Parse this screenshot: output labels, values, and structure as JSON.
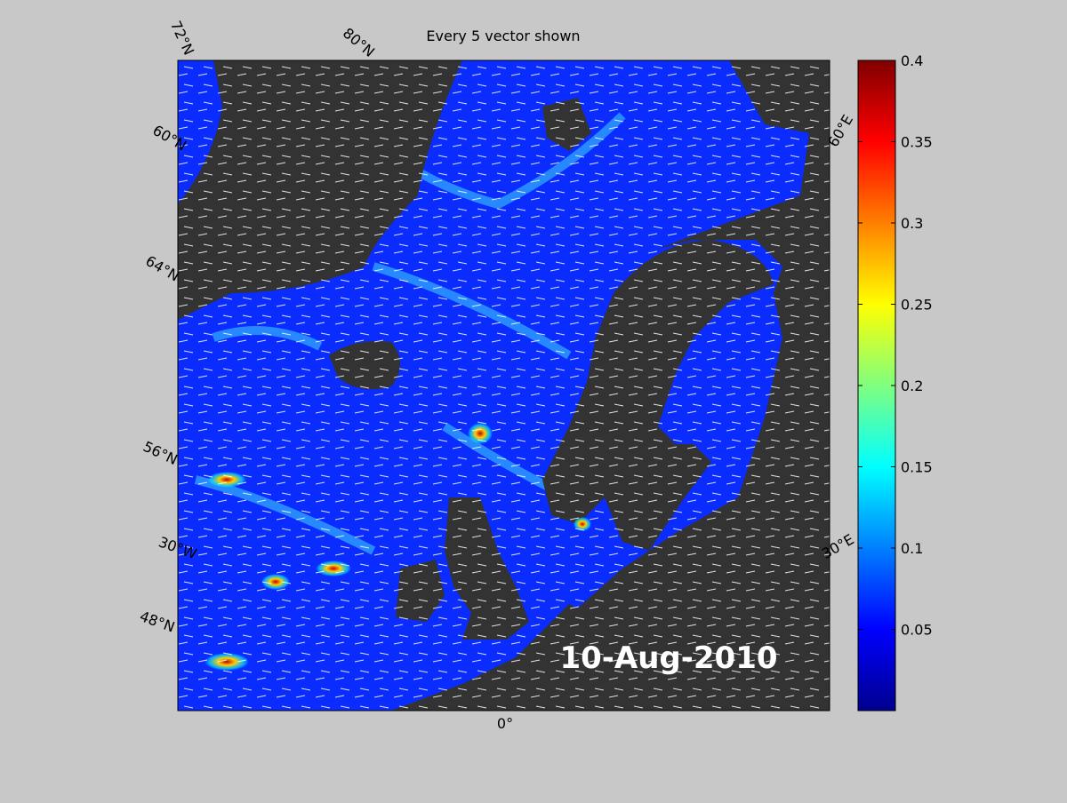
{
  "title": "Every 5 vector shown",
  "date_label": "10-Aug-2010",
  "graticule_labels": [
    "72°N",
    "80°N",
    "60°N",
    "64°N",
    "56°N",
    "30°W",
    "48°N",
    "0°",
    "30°E",
    "60°E"
  ],
  "colorbar": {
    "lim": [
      0,
      0.4
    ],
    "ticks": [
      0.05,
      0.1,
      0.15,
      0.2,
      0.25,
      0.3,
      0.35,
      0.4
    ]
  }
}
